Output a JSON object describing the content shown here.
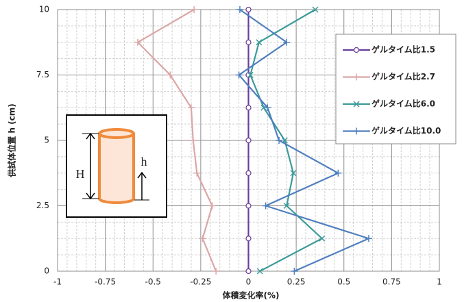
{
  "chart_data": {
    "type": "line",
    "x_label": "体積変化率(%)",
    "y_label": "供試体位置 h (cm)",
    "y": [
      0,
      1.25,
      2.5,
      3.75,
      5,
      6.25,
      7.5,
      8.75,
      10
    ],
    "series": [
      {
        "name": "ゲルタイム比1.5",
        "color": "#6a3d9a",
        "marker": "circle",
        "values": [
          0,
          0,
          0,
          0,
          0,
          0,
          0,
          0,
          0
        ]
      },
      {
        "name": "ゲルタイム比2.7",
        "color": "#dba6a6",
        "marker": "plus",
        "values": [
          -0.17,
          -0.24,
          -0.19,
          -0.27,
          -0.29,
          -0.3,
          -0.41,
          -0.58,
          -0.285
        ]
      },
      {
        "name": "ゲルタイム比6.0",
        "color": "#3c9a9a",
        "marker": "cross",
        "values": [
          0.06,
          0.385,
          0.2,
          0.235,
          0.19,
          0.08,
          0.01,
          0.055,
          0.35
        ]
      },
      {
        "name": "ゲルタイム比10.0",
        "color": "#4f7fbf",
        "marker": "plus",
        "values": [
          0.24,
          0.63,
          0.09,
          0.47,
          0.16,
          0.1,
          -0.05,
          0.2,
          -0.045
        ]
      }
    ],
    "xlim": [
      -1,
      1
    ],
    "xticks": [
      -1,
      -0.75,
      -0.5,
      -0.25,
      0,
      0.25,
      0.5,
      0.75,
      1
    ],
    "ylim": [
      0,
      10
    ],
    "yticks": [
      0,
      2.5,
      5,
      7.5,
      10
    ],
    "grid": true,
    "minor_grid": true,
    "legend": "right",
    "annotations": [
      "H",
      "h"
    ]
  }
}
